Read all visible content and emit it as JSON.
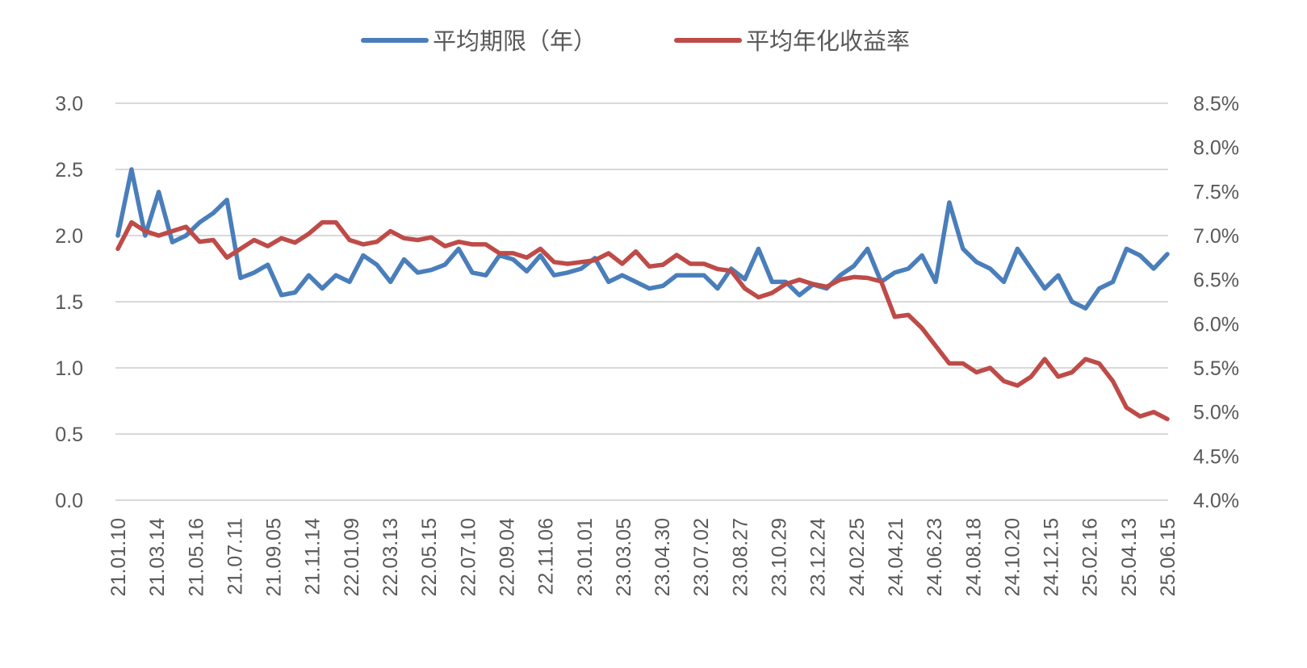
{
  "chart_data": {
    "type": "line",
    "title": "",
    "legend_position": "top",
    "grid": true,
    "y_left": {
      "min": 0.0,
      "max": 3.0,
      "step": 0.5,
      "tick_labels": [
        "0.0",
        "0.5",
        "1.0",
        "1.5",
        "2.0",
        "2.5",
        "3.0"
      ]
    },
    "y_right": {
      "min": 4.0,
      "max": 8.5,
      "step": 0.5,
      "tick_labels": [
        "4.0%",
        "4.5%",
        "5.0%",
        "5.5%",
        "6.0%",
        "6.5%",
        "7.0%",
        "7.5%",
        "8.0%",
        "8.5%"
      ]
    },
    "x_tick_labels": [
      "21.01.10",
      "21.03.14",
      "21.05.16",
      "21.07.11",
      "21.09.05",
      "21.11.14",
      "22.01.09",
      "22.03.13",
      "22.05.15",
      "22.07.10",
      "22.09.04",
      "22.11.06",
      "23.01.01",
      "23.03.05",
      "23.04.30",
      "23.07.02",
      "23.08.27",
      "23.10.29",
      "23.12.24",
      "24.02.25",
      "24.04.21",
      "24.06.23",
      "24.08.18",
      "24.10.20",
      "24.12.15",
      "25.02.16",
      "25.04.13",
      "25.06.15"
    ],
    "x": [
      "2021-01-10",
      "2021-01-31",
      "2021-02-21",
      "2021-03-14",
      "2021-04-04",
      "2021-04-25",
      "2021-05-16",
      "2021-06-06",
      "2021-06-27",
      "2021-07-18",
      "2021-08-08",
      "2021-08-29",
      "2021-09-19",
      "2021-10-10",
      "2021-10-31",
      "2021-11-21",
      "2021-12-12",
      "2022-01-02",
      "2022-01-23",
      "2022-02-13",
      "2022-03-06",
      "2022-03-27",
      "2022-04-17",
      "2022-05-08",
      "2022-05-29",
      "2022-06-19",
      "2022-07-10",
      "2022-07-31",
      "2022-08-21",
      "2022-09-11",
      "2022-10-02",
      "2022-10-23",
      "2022-11-13",
      "2022-12-04",
      "2022-12-25",
      "2023-01-15",
      "2023-02-05",
      "2023-02-26",
      "2023-03-19",
      "2023-04-09",
      "2023-04-30",
      "2023-05-21",
      "2023-06-11",
      "2023-07-02",
      "2023-07-23",
      "2023-08-13",
      "2023-09-03",
      "2023-09-24",
      "2023-10-15",
      "2023-11-05",
      "2023-11-26",
      "2023-12-17",
      "2024-01-07",
      "2024-01-28",
      "2024-02-18",
      "2024-03-10",
      "2024-03-31",
      "2024-04-21",
      "2024-05-12",
      "2024-06-02",
      "2024-06-23",
      "2024-07-14",
      "2024-08-04",
      "2024-08-25",
      "2024-09-15",
      "2024-10-06",
      "2024-10-27",
      "2024-11-17",
      "2024-12-08",
      "2024-12-29",
      "2025-01-19",
      "2025-02-09",
      "2025-03-02",
      "2025-03-23",
      "2025-04-13",
      "2025-05-04",
      "2025-05-25",
      "2025-06-15"
    ],
    "series": [
      {
        "name": "平均期限（年）",
        "axis": "left",
        "color": "#4a7ebb",
        "values": [
          2.0,
          2.5,
          2.0,
          2.33,
          1.95,
          2.0,
          2.1,
          2.17,
          2.27,
          1.68,
          1.72,
          1.78,
          1.55,
          1.57,
          1.7,
          1.6,
          1.7,
          1.65,
          1.85,
          1.78,
          1.65,
          1.82,
          1.72,
          1.74,
          1.78,
          1.9,
          1.72,
          1.7,
          1.85,
          1.82,
          1.73,
          1.85,
          1.7,
          1.72,
          1.75,
          1.83,
          1.65,
          1.7,
          1.65,
          1.6,
          1.62,
          1.7,
          1.7,
          1.7,
          1.6,
          1.75,
          1.67,
          1.9,
          1.65,
          1.65,
          1.55,
          1.63,
          1.6,
          1.7,
          1.77,
          1.9,
          1.65,
          1.72,
          1.75,
          1.85,
          1.65,
          2.25,
          1.9,
          1.8,
          1.75,
          1.65,
          1.9,
          1.75,
          1.6,
          1.7,
          1.5,
          1.45,
          1.6,
          1.65,
          1.9,
          1.85,
          1.75,
          1.86
        ]
      },
      {
        "name": "平均年化收益率",
        "axis": "right",
        "color": "#be4b48",
        "values": [
          6.85,
          7.15,
          7.05,
          7.0,
          7.05,
          7.1,
          6.93,
          6.95,
          6.75,
          6.85,
          6.95,
          6.88,
          6.97,
          6.92,
          7.02,
          7.15,
          7.15,
          6.95,
          6.9,
          6.93,
          7.05,
          6.97,
          6.95,
          6.98,
          6.88,
          6.93,
          6.9,
          6.9,
          6.8,
          6.8,
          6.75,
          6.85,
          6.7,
          6.68,
          6.7,
          6.72,
          6.8,
          6.68,
          6.82,
          6.65,
          6.67,
          6.78,
          6.68,
          6.68,
          6.62,
          6.6,
          6.4,
          6.3,
          6.35,
          6.45,
          6.5,
          6.45,
          6.42,
          6.5,
          6.53,
          6.52,
          6.48,
          6.08,
          6.1,
          5.95,
          5.75,
          5.55,
          5.55,
          5.45,
          5.5,
          5.35,
          5.3,
          5.4,
          5.6,
          5.4,
          5.45,
          5.6,
          5.55,
          5.35,
          5.05,
          4.95,
          5.0,
          4.92
        ]
      }
    ]
  }
}
